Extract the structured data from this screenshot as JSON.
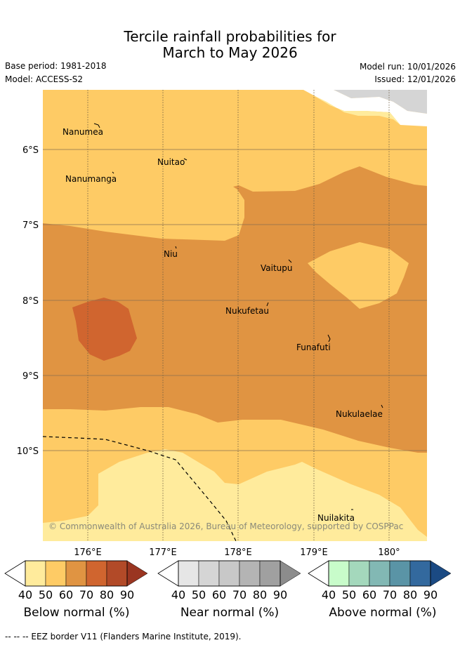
{
  "title_line1": "Tercile rainfall probabilities for",
  "title_line2": "March to May 2026",
  "base_period": "Base period: 1981-2018",
  "model": "Model: ACCESS-S2",
  "model_run": "Model run: 10/01/2026",
  "issued": "Issued: 12/01/2026",
  "copyright": "© Commonwealth of Australia 2026, Bureau of Meteorology, supported by COSPPac",
  "lon_labels": [
    "176°E",
    "177°E",
    "178°E",
    "179°E",
    "180°"
  ],
  "lat_labels": [
    "6°S",
    "7°S",
    "8°S",
    "9°S",
    "10°S"
  ],
  "islands": [
    "Nanumea",
    "Nuitao",
    "Nanumanga",
    "Niu",
    "Vaitupu",
    "Nukufetau",
    "Funafuti",
    "Nukulaelae",
    "Nuilakita"
  ],
  "colorbars": [
    {
      "label": "Below normal (%)",
      "ticks": [
        "40",
        "50",
        "60",
        "70",
        "80",
        "90"
      ],
      "colors": [
        "#ffeb9c",
        "#fecb65",
        "#e09442",
        "#d0652f",
        "#b24a28",
        "#9a3521"
      ]
    },
    {
      "label": "Near normal (%)",
      "ticks": [
        "40",
        "50",
        "60",
        "70",
        "80",
        "90"
      ],
      "colors": [
        "#e6e6e6",
        "#d5d5d5",
        "#c8c8c8",
        "#b4b4b4",
        "#a0a0a0",
        "#8c8c8c"
      ]
    },
    {
      "label": "Above normal (%)",
      "ticks": [
        "40",
        "50",
        "60",
        "70",
        "80",
        "90"
      ],
      "colors": [
        "#c8fcca",
        "#a4d8bc",
        "#82b8b4",
        "#5a94a6",
        "#33699e",
        "#1b4a83"
      ]
    }
  ],
  "footer": "--  --  -- EEZ border V11 (Flanders Marine Institute, 2019).",
  "colors": {
    "below_40": "#ffeb9c",
    "below_50": "#fecb65",
    "below_60": "#e09442",
    "below_70": "#d0652f",
    "near_40": "#e6e6e6",
    "near_50": "#d5d5d5"
  }
}
